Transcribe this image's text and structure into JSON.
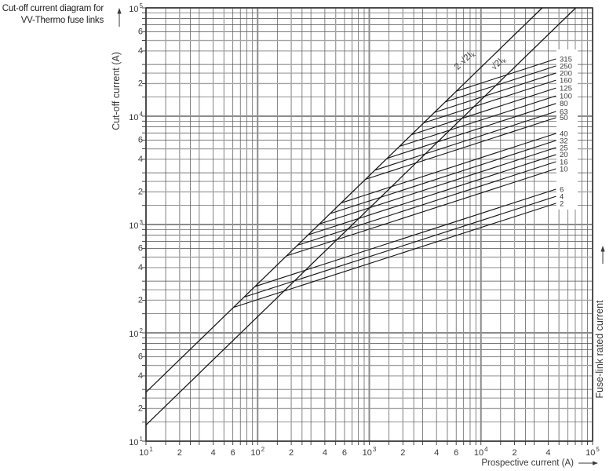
{
  "header": {
    "title_line1": "Cut-off current diagram for",
    "title_line2": "VV-Thermo fuse links"
  },
  "chart_data": {
    "type": "line",
    "title": "Cut-off current diagram for VV-Thermo fuse links",
    "x_axis": {
      "label": "Prospective current (A)",
      "scale": "log",
      "min": 10,
      "max": 100000,
      "ticks": [
        {
          "v": 10,
          "t": "10",
          "sup": "1"
        },
        {
          "v": 20,
          "t": "2"
        },
        {
          "v": 40,
          "t": "4"
        },
        {
          "v": 60,
          "t": "6"
        },
        {
          "v": 100,
          "t": "10",
          "sup": "2"
        },
        {
          "v": 200,
          "t": "2"
        },
        {
          "v": 400,
          "t": "4"
        },
        {
          "v": 600,
          "t": "6"
        },
        {
          "v": 1000,
          "t": "10",
          "sup": "3"
        },
        {
          "v": 2000,
          "t": "2"
        },
        {
          "v": 4000,
          "t": "4"
        },
        {
          "v": 6000,
          "t": "6"
        },
        {
          "v": 10000,
          "t": "10",
          "sup": "4"
        },
        {
          "v": 20000,
          "t": "2"
        },
        {
          "v": 40000,
          "t": "4"
        },
        {
          "v": 100000,
          "t": "10",
          "sup": "5"
        }
      ]
    },
    "y_axis": {
      "label": "Cut-off current (A)",
      "scale": "log",
      "min": 10,
      "max": 100000,
      "ticks": [
        {
          "v": 100000,
          "t": "10",
          "sup": "5"
        },
        {
          "v": 60000,
          "t": "6"
        },
        {
          "v": 40000,
          "t": "4"
        },
        {
          "v": 20000,
          "t": "2"
        },
        {
          "v": 10000,
          "t": "10",
          "sup": "4"
        },
        {
          "v": 6000,
          "t": "6"
        },
        {
          "v": 4000,
          "t": "4"
        },
        {
          "v": 2000,
          "t": "2"
        },
        {
          "v": 1000,
          "t": "10",
          "sup": "3"
        },
        {
          "v": 600,
          "t": "6"
        },
        {
          "v": 400,
          "t": "4"
        },
        {
          "v": 200,
          "t": "2"
        },
        {
          "v": 100,
          "t": "10",
          "sup": "2"
        },
        {
          "v": 60,
          "t": "6"
        },
        {
          "v": 40,
          "t": "4"
        },
        {
          "v": 20,
          "t": "2"
        },
        {
          "v": 10,
          "t": "10",
          "sup": "1"
        }
      ]
    },
    "right_axis_label": "Fuse-link rated current",
    "grid": {
      "minor_multipliers": [
        1.5,
        2,
        2.5,
        3,
        4,
        5,
        6,
        7,
        8,
        9
      ],
      "decade_exponents": [
        1,
        2,
        3,
        4,
        5
      ]
    },
    "reference_lines": [
      {
        "name": "asymmetrical-peak-line",
        "label": "2·√2Iₖ",
        "label_main": "2·√2I",
        "label_sub": "k",
        "slope_decades": 1,
        "points": [
          [
            10,
            28.3
          ],
          [
            35400,
            100000
          ]
        ]
      },
      {
        "name": "symmetrical-peak-line",
        "label": "√2Iₖ",
        "label_main": "√2I",
        "label_sub": "k",
        "slope_decades": 1,
        "points": [
          [
            10,
            14.1
          ],
          [
            70700,
            100000
          ]
        ]
      }
    ],
    "series": [
      {
        "name": "fuse-curve-315",
        "label": "315",
        "rated_current_a": 315,
        "points": [
          [
            6010,
            17000
          ],
          [
            47000,
            33800
          ]
        ]
      },
      {
        "name": "fuse-curve-250",
        "label": "250",
        "rated_current_a": 250,
        "points": [
          [
            4800,
            13570
          ],
          [
            47000,
            29100
          ]
        ]
      },
      {
        "name": "fuse-curve-200",
        "label": "200",
        "rated_current_a": 200,
        "points": [
          [
            3840,
            10850
          ],
          [
            47000,
            25000
          ]
        ]
      },
      {
        "name": "fuse-curve-160",
        "label": "160",
        "rated_current_a": 160,
        "points": [
          [
            3060,
            8660
          ],
          [
            47000,
            21500
          ]
        ]
      },
      {
        "name": "fuse-curve-125",
        "label": "125",
        "rated_current_a": 125,
        "points": [
          [
            2380,
            6740
          ],
          [
            47000,
            18200
          ]
        ]
      },
      {
        "name": "fuse-curve-100",
        "label": "100",
        "rated_current_a": 100,
        "points": [
          [
            1860,
            5260
          ],
          [
            47000,
            15400
          ]
        ]
      },
      {
        "name": "fuse-curve-80",
        "label": "80",
        "rated_current_a": 80,
        "points": [
          [
            1450,
            4090
          ],
          [
            47000,
            13100
          ]
        ]
      },
      {
        "name": "fuse-curve-63",
        "label": "63",
        "rated_current_a": 63,
        "points": [
          [
            1130,
            3180
          ],
          [
            47000,
            11050
          ]
        ]
      },
      {
        "name": "fuse-curve-50",
        "label": "50",
        "rated_current_a": 50,
        "points": [
          [
            920,
            2610
          ],
          [
            47000,
            9690
          ]
        ]
      },
      {
        "name": "fuse-curve-40",
        "label": "40",
        "rated_current_a": 40,
        "points": [
          [
            558,
            1580
          ],
          [
            47000,
            6930
          ]
        ]
      },
      {
        "name": "fuse-curve-32",
        "label": "32",
        "rated_current_a": 32,
        "points": [
          [
            446,
            1260
          ],
          [
            47000,
            5960
          ]
        ]
      },
      {
        "name": "fuse-curve-25",
        "label": "25",
        "rated_current_a": 25,
        "points": [
          [
            356,
            1010
          ],
          [
            47000,
            5130
          ]
        ]
      },
      {
        "name": "fuse-curve-20",
        "label": "20",
        "rated_current_a": 20,
        "points": [
          [
            284,
            803
          ],
          [
            47000,
            4420
          ]
        ]
      },
      {
        "name": "fuse-curve-16",
        "label": "16",
        "rated_current_a": 16,
        "points": [
          [
            227,
            643
          ],
          [
            47000,
            3800
          ]
        ]
      },
      {
        "name": "fuse-curve-10",
        "label": "10",
        "rated_current_a": 10,
        "points": [
          [
            181,
            513
          ],
          [
            47000,
            3270
          ]
        ]
      },
      {
        "name": "fuse-curve-6",
        "label": "6",
        "rated_current_a": 6,
        "points": [
          [
            95,
            268
          ],
          [
            47000,
            2120
          ]
        ]
      },
      {
        "name": "fuse-curve-4",
        "label": "4",
        "rated_current_a": 4,
        "points": [
          [
            76,
            214
          ],
          [
            47000,
            1820
          ]
        ]
      },
      {
        "name": "fuse-curve-2",
        "label": "2",
        "rated_current_a": 2,
        "points": [
          [
            61,
            172
          ],
          [
            47000,
            1570
          ]
        ]
      }
    ],
    "colors": {
      "background": "#ffffff",
      "line": "#161616",
      "frame": "#333333",
      "grid_minor": "#4f4f4f",
      "grid_mid": "#a3a3a3",
      "grid_major": "#8c8c8c",
      "text": "#3a3a3a"
    }
  }
}
